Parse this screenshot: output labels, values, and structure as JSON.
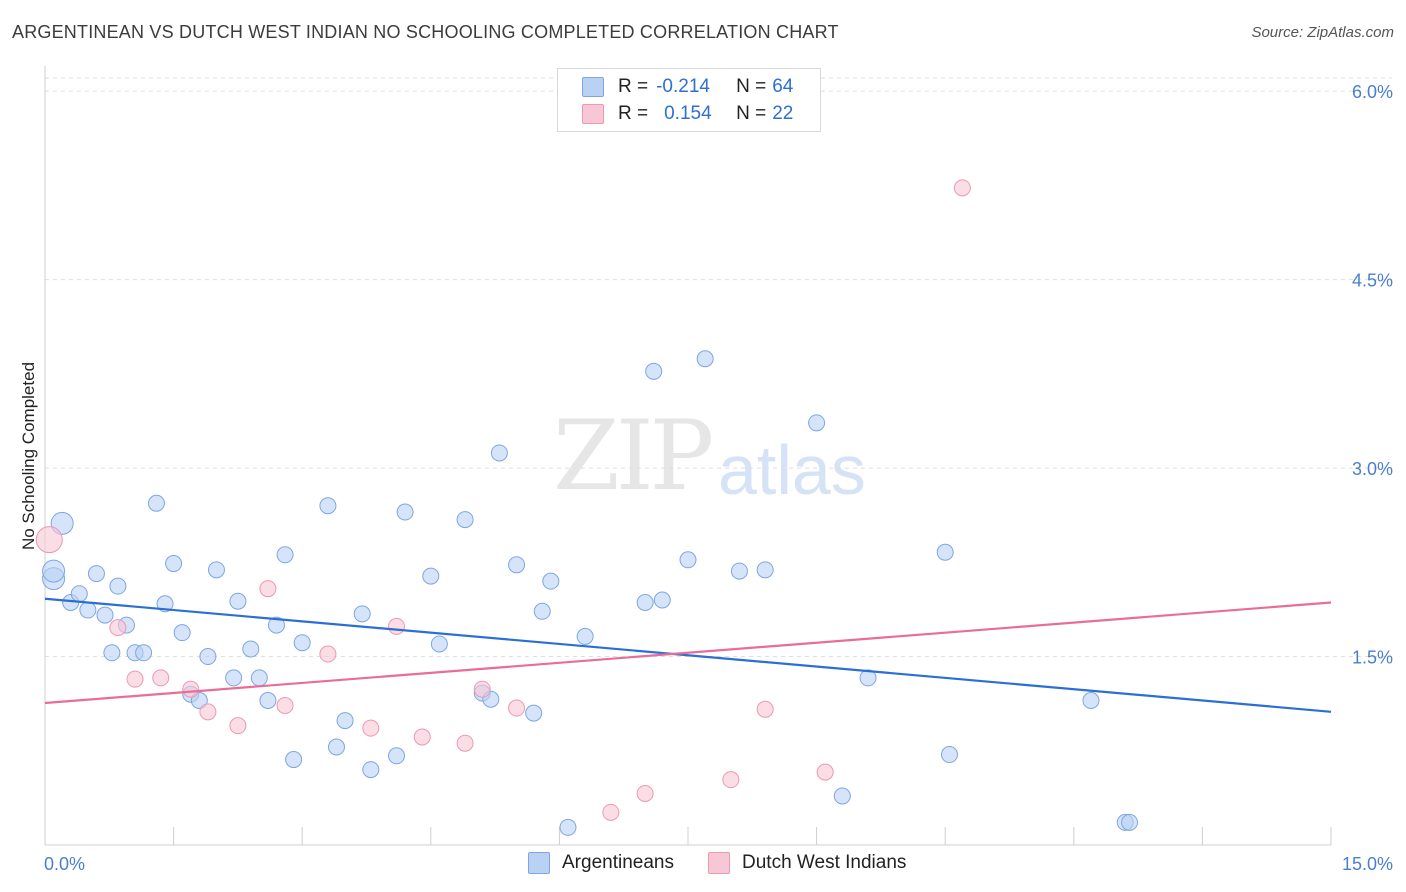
{
  "title": "ARGENTINEAN VS DUTCH WEST INDIAN NO SCHOOLING COMPLETED CORRELATION CHART",
  "source": "Source: ZipAtlas.com",
  "watermark": {
    "zip": "ZIP",
    "atlas": "atlas"
  },
  "legend": {
    "argentineans": {
      "r_label": "R = ",
      "r_value": "-0.214",
      "n_label": "N = ",
      "n_value": "64"
    },
    "dutch": {
      "r_label": "R = ",
      "r_value": "0.154",
      "n_label": "N = ",
      "n_value": "22"
    }
  },
  "colors": {
    "argentineans_fill": "#b9d2f4",
    "argentineans_stroke": "#7ea6e3",
    "argentineans_line": "#2a6fd3",
    "dutch_fill": "#f8c7d6",
    "dutch_stroke": "#ec98b4",
    "dutch_line": "#e86d98",
    "grid": "#dedede",
    "axis_label": "#4a7fd0"
  },
  "chart_data": {
    "type": "scatter",
    "title": "ARGENTINEAN VS DUTCH WEST INDIAN NO SCHOOLING COMPLETED CORRELATION CHART",
    "xlabel": "",
    "ylabel": "No Schooling Completed",
    "xlim": [
      0,
      15
    ],
    "ylim": [
      0,
      6.2
    ],
    "x_tick_labels": [
      "0.0%",
      "15.0%"
    ],
    "y_ticks": [
      1.5,
      3.0,
      4.5,
      6.0
    ],
    "y_tick_labels": [
      "1.5%",
      "3.0%",
      "4.5%",
      "6.0%"
    ],
    "grid": "horizontal dashed",
    "legend_position": "top-center",
    "series": [
      {
        "name": "Argentineans",
        "points": [
          [
            0.1,
            2.12
          ],
          [
            0.1,
            2.18
          ],
          [
            0.2,
            2.56
          ],
          [
            0.3,
            1.93
          ],
          [
            0.4,
            2.0
          ],
          [
            0.5,
            1.87
          ],
          [
            0.6,
            2.16
          ],
          [
            0.7,
            1.83
          ],
          [
            0.85,
            2.06
          ],
          [
            0.95,
            1.75
          ],
          [
            0.78,
            1.53
          ],
          [
            1.05,
            1.53
          ],
          [
            1.15,
            1.53
          ],
          [
            1.3,
            2.72
          ],
          [
            1.4,
            1.92
          ],
          [
            1.5,
            2.24
          ],
          [
            1.6,
            1.69
          ],
          [
            1.7,
            1.2
          ],
          [
            1.8,
            1.15
          ],
          [
            1.9,
            1.5
          ],
          [
            2.0,
            2.19
          ],
          [
            2.2,
            1.33
          ],
          [
            2.25,
            1.94
          ],
          [
            2.4,
            1.56
          ],
          [
            2.5,
            1.33
          ],
          [
            2.6,
            1.15
          ],
          [
            2.7,
            1.75
          ],
          [
            2.8,
            2.31
          ],
          [
            2.9,
            0.68
          ],
          [
            3.0,
            1.61
          ],
          [
            3.3,
            2.7
          ],
          [
            3.4,
            0.78
          ],
          [
            3.5,
            0.99
          ],
          [
            3.7,
            1.84
          ],
          [
            3.8,
            0.6
          ],
          [
            4.1,
            0.71
          ],
          [
            4.2,
            2.65
          ],
          [
            4.5,
            2.14
          ],
          [
            4.6,
            1.6
          ],
          [
            4.9,
            2.59
          ],
          [
            5.1,
            1.21
          ],
          [
            5.2,
            1.16
          ],
          [
            5.3,
            3.12
          ],
          [
            5.5,
            2.23
          ],
          [
            5.7,
            1.05
          ],
          [
            5.8,
            1.86
          ],
          [
            5.9,
            2.1
          ],
          [
            6.1,
            0.14
          ],
          [
            6.3,
            1.66
          ],
          [
            7.0,
            1.93
          ],
          [
            7.1,
            3.77
          ],
          [
            7.2,
            1.95
          ],
          [
            7.5,
            2.27
          ],
          [
            7.7,
            3.87
          ],
          [
            8.1,
            2.18
          ],
          [
            8.4,
            2.19
          ],
          [
            9.0,
            3.36
          ],
          [
            9.3,
            0.39
          ],
          [
            9.6,
            1.33
          ],
          [
            10.5,
            2.33
          ],
          [
            10.55,
            0.72
          ],
          [
            12.2,
            1.15
          ],
          [
            12.6,
            0.18
          ],
          [
            12.65,
            0.18
          ]
        ],
        "trend": {
          "x": [
            0,
            15
          ],
          "y": [
            1.96,
            1.06
          ]
        }
      },
      {
        "name": "Dutch West Indians",
        "points": [
          [
            0.05,
            2.43
          ],
          [
            0.85,
            1.73
          ],
          [
            1.05,
            1.32
          ],
          [
            1.35,
            1.33
          ],
          [
            1.7,
            1.24
          ],
          [
            1.9,
            1.06
          ],
          [
            2.25,
            0.95
          ],
          [
            2.6,
            2.04
          ],
          [
            2.8,
            1.11
          ],
          [
            3.3,
            1.52
          ],
          [
            3.8,
            0.93
          ],
          [
            4.1,
            1.74
          ],
          [
            4.4,
            0.86
          ],
          [
            4.9,
            0.81
          ],
          [
            5.1,
            1.24
          ],
          [
            5.5,
            1.09
          ],
          [
            6.6,
            0.26
          ],
          [
            7.0,
            0.41
          ],
          [
            8.0,
            0.52
          ],
          [
            8.4,
            1.08
          ],
          [
            9.1,
            0.58
          ],
          [
            10.7,
            5.23
          ]
        ],
        "trend": {
          "x": [
            0,
            15
          ],
          "y": [
            1.13,
            1.93
          ]
        }
      }
    ]
  },
  "bottom_legend": {
    "argentineans": "Argentineans",
    "dutch": "Dutch West Indians"
  }
}
